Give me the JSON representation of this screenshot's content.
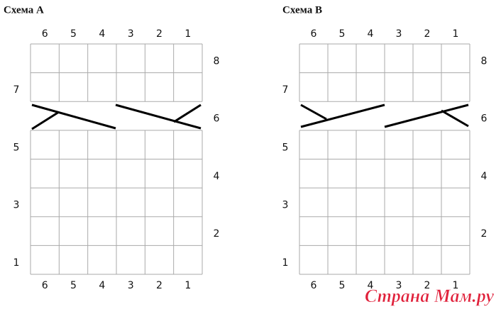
{
  "schemes": [
    {
      "title": "Схема А",
      "columns_top": [
        6,
        5,
        4,
        3,
        2,
        1
      ],
      "columns_bottom": [
        6,
        5,
        4,
        3,
        2,
        1
      ],
      "rows_left": [
        7,
        5,
        3,
        1
      ],
      "rows_right": [
        8,
        6,
        4,
        2
      ]
    },
    {
      "title": "Схема В",
      "columns_top": [
        6,
        5,
        4,
        3,
        2,
        1
      ],
      "columns_bottom": [
        6,
        5,
        4,
        3,
        2,
        1
      ],
      "rows_left": [
        7,
        5,
        3,
        1
      ],
      "rows_right": [
        8,
        6,
        4,
        2
      ]
    }
  ],
  "watermark": "Страна Мам.ру"
}
